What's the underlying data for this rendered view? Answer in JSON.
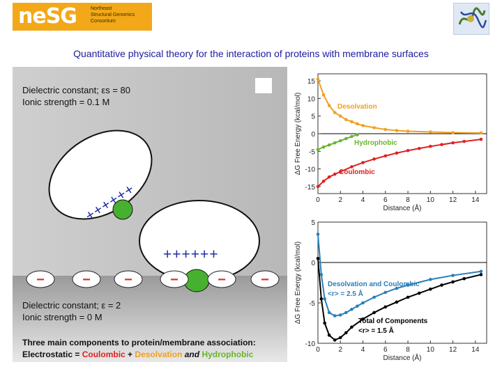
{
  "header": {
    "logo_text": "neSG",
    "logo_subtitle": "Northeast\nStructural Genomics\nConsortium",
    "title": "Quantitative physical theory for the interaction of proteins with membrane surfaces"
  },
  "schematic": {
    "solvent_dielectric": "Dielectric constant; εs = 80",
    "solvent_ionic": "Ionic strength = 0.1 M",
    "membrane_dielectric": "Dielectric constant; ε = 2",
    "membrane_ionic": "Ionic strength = 0 M",
    "protein_charges_1": "++++++",
    "protein_charges_2": "++++++",
    "membrane_charge_symbol": "−",
    "summary_line1": "Three main components to protein/membrane association:",
    "summary_prefix": "Electrostatic = ",
    "summary_coulombic": "Coulombic",
    "summary_plus": " + ",
    "summary_desolvation": "Desolvation",
    "summary_and": " and ",
    "summary_hydrophobic": "Hydrophobic"
  },
  "colors": {
    "desolvation": "#f0a020",
    "hydrophobic": "#6ab42c",
    "coulombic": "#e02020",
    "combined": "#2a7fb8",
    "total": "#000000",
    "charge_plus": "#1f2fa0",
    "charge_minus": "#e03020",
    "title": "#1a1aa0"
  },
  "chart_data": [
    {
      "type": "line",
      "xlabel": "Distance (Å)",
      "ylabel": "ΔG Free Energy (kcal/mol)",
      "xlim": [
        0,
        15
      ],
      "ylim": [
        -17,
        17
      ],
      "xticks": [
        0,
        2,
        4,
        6,
        8,
        10,
        12,
        14
      ],
      "yticks": [
        15,
        10,
        5,
        0,
        -5,
        -10,
        -15
      ],
      "series": [
        {
          "name": "Desolvation",
          "color": "#f0a020",
          "x": [
            0,
            0.5,
            1,
            1.5,
            2,
            2.5,
            3,
            3.5,
            4,
            5,
            6,
            7,
            8,
            10,
            12,
            14.5
          ],
          "y": [
            15.5,
            11,
            8,
            6,
            5,
            4,
            3.4,
            2.8,
            2.3,
            1.7,
            1.2,
            0.9,
            0.7,
            0.5,
            0.3,
            0.2
          ]
        },
        {
          "name": "Hydrophobic",
          "color": "#6ab42c",
          "x": [
            0,
            0.5,
            1,
            1.5,
            2,
            2.5,
            3,
            3.5
          ],
          "y": [
            -4.5,
            -3.8,
            -3.2,
            -2.6,
            -2.0,
            -1.4,
            -0.8,
            -0.3
          ]
        },
        {
          "name": "Coulombic",
          "color": "#e02020",
          "x": [
            0,
            0.5,
            1,
            1.5,
            2,
            3,
            4,
            5,
            6,
            7,
            8,
            9,
            10,
            11,
            12,
            13,
            14.5
          ],
          "y": [
            -15,
            -13.5,
            -12.3,
            -11.5,
            -10.8,
            -9.4,
            -8.2,
            -7.2,
            -6.3,
            -5.5,
            -4.8,
            -4.2,
            -3.6,
            -3.1,
            -2.6,
            -2.2,
            -1.6
          ]
        }
      ]
    },
    {
      "type": "line",
      "xlabel": "Distance (Å)",
      "ylabel": "ΔG Free Energy (kcal/mol)",
      "xlim": [
        0,
        15
      ],
      "ylim": [
        -10,
        5
      ],
      "xticks": [
        0,
        2,
        4,
        6,
        8,
        10,
        12,
        14
      ],
      "yticks": [
        5,
        0,
        -5,
        -10
      ],
      "series": [
        {
          "name": "Desolvation and Coulombic",
          "color": "#2a7fb8",
          "annotation": "<r> = 2.5 Å",
          "x": [
            0,
            0.3,
            0.6,
            1,
            1.5,
            2,
            2.5,
            3,
            3.5,
            4,
            5,
            6,
            7,
            8,
            10,
            12,
            14.5
          ],
          "y": [
            3.5,
            -1.5,
            -4.5,
            -6.2,
            -6.6,
            -6.5,
            -6.2,
            -5.8,
            -5.4,
            -5.0,
            -4.3,
            -3.7,
            -3.2,
            -2.8,
            -2.1,
            -1.6,
            -1.1
          ]
        },
        {
          "name": "Total of Components",
          "color": "#000000",
          "annotation": "<r> = 1.5 Å",
          "x": [
            0,
            0.3,
            0.6,
            1,
            1.5,
            2,
            2.5,
            3,
            4,
            5,
            6,
            7,
            8,
            9,
            10,
            11,
            12,
            13,
            14.5
          ],
          "y": [
            0.5,
            -4.5,
            -7.5,
            -9.0,
            -9.6,
            -9.3,
            -8.7,
            -8.0,
            -7.0,
            -6.2,
            -5.5,
            -4.9,
            -4.3,
            -3.8,
            -3.3,
            -2.8,
            -2.4,
            -2.0,
            -1.5
          ]
        }
      ]
    }
  ]
}
